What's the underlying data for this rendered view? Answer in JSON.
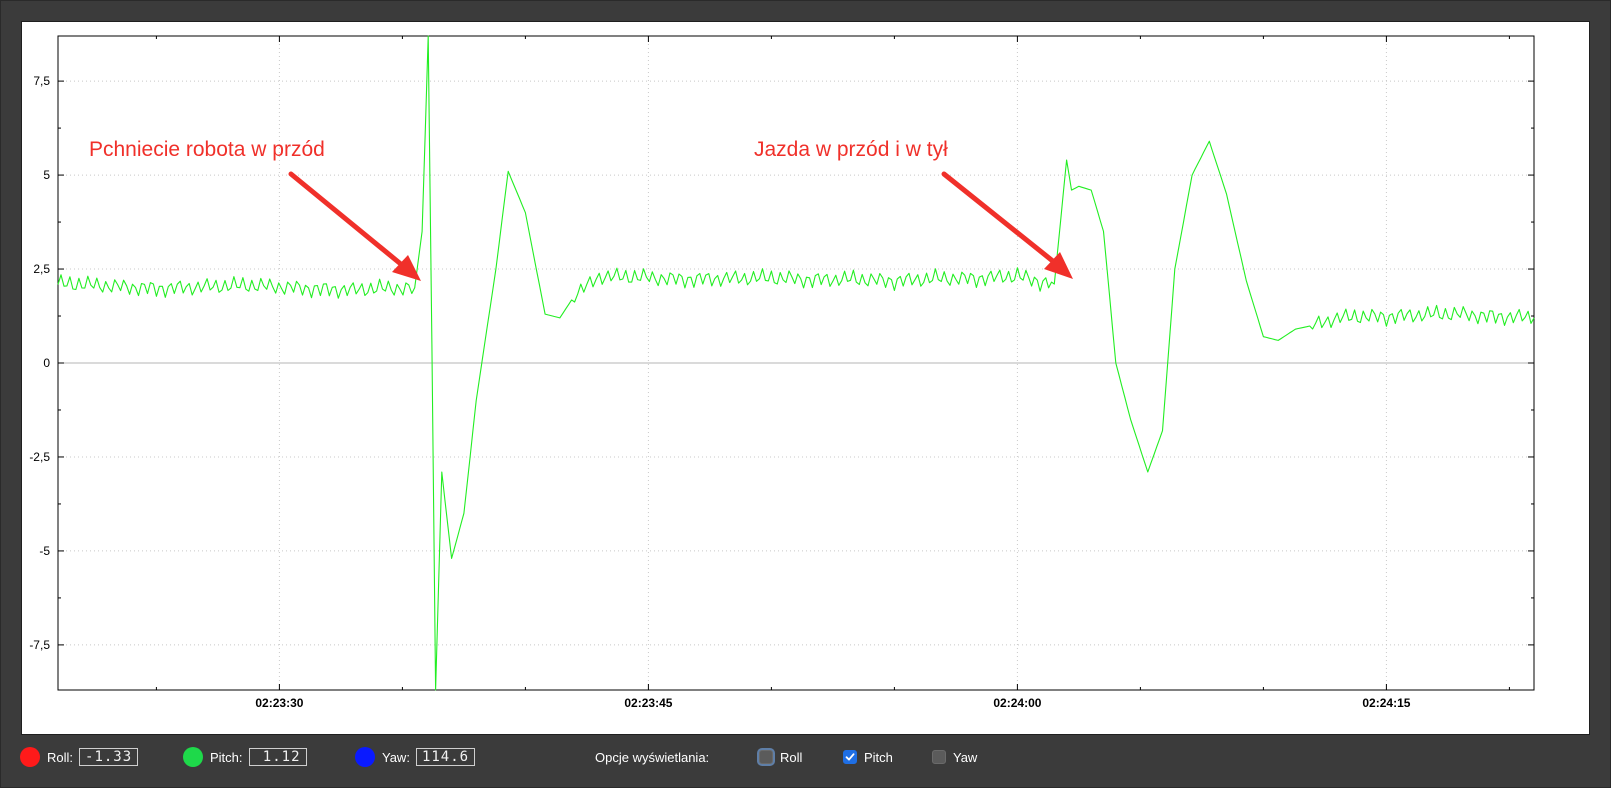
{
  "chart_data": {
    "type": "line",
    "title": "",
    "xlabel": "",
    "ylabel": "",
    "xlim": [
      "02:23:21",
      "02:24:21"
    ],
    "ylim": [
      -8.7,
      8.7
    ],
    "yticks": [
      7.5,
      5,
      2.5,
      0,
      -2.5,
      -5,
      -7.5
    ],
    "ytick_labels": [
      "7,5",
      "5",
      "2,5",
      "0",
      "-2,5",
      "-5",
      "-7,5"
    ],
    "xticks": [
      "02:23:30",
      "02:23:45",
      "02:24:00",
      "02:24:15"
    ],
    "grid": true,
    "series": [
      {
        "name": "Pitch",
        "color": "#22ee22",
        "x": [
          "02:23:21",
          "02:23:25",
          "02:23:29",
          "02:23:33",
          "02:23:35.5",
          "02:23:35.8",
          "02:23:36.05",
          "02:23:36.2",
          "02:23:36.35",
          "02:23:36.6",
          "02:23:37",
          "02:23:37.5",
          "02:23:38",
          "02:23:38.8",
          "02:23:39.3",
          "02:23:40",
          "02:23:40.8",
          "02:23:41.4",
          "02:23:42",
          "02:23:43",
          "02:23:46",
          "02:23:50",
          "02:23:55",
          "02:24:00",
          "02:24:01.5",
          "02:24:02",
          "02:24:02.2",
          "02:24:02.5",
          "02:24:03",
          "02:24:03.5",
          "02:24:04",
          "02:24:04.6",
          "02:24:05.3",
          "02:24:05.9",
          "02:24:06.4",
          "02:24:07.1",
          "02:24:07.8",
          "02:24:08.5",
          "02:24:09.3",
          "02:24:10",
          "02:24:10.6",
          "02:24:11.3",
          "02:24:12",
          "02:24:13",
          "02:24:15",
          "02:24:18",
          "02:24:21"
        ],
        "y": [
          2.1,
          2.0,
          2.05,
          1.95,
          2.0,
          3.5,
          8.7,
          0.5,
          -8.7,
          -2.9,
          -5.2,
          -4.0,
          -1.0,
          2.5,
          5.1,
          4.0,
          1.3,
          1.2,
          1.8,
          2.3,
          2.25,
          2.25,
          2.2,
          2.3,
          2.1,
          5.4,
          4.6,
          4.7,
          4.6,
          3.5,
          0.0,
          -1.5,
          -2.9,
          -1.8,
          2.5,
          5.0,
          5.9,
          4.5,
          2.2,
          0.7,
          0.6,
          0.9,
          1.0,
          1.2,
          1.25,
          1.3,
          1.2
        ]
      }
    ]
  },
  "annotations": [
    {
      "text": "Pchniecie robota w przód"
    },
    {
      "text": "Jazda w przód i w tył"
    }
  ],
  "annotation_color": "#f0302a",
  "status": {
    "roll": {
      "label": "Roll:",
      "value": "-1.33",
      "color": "#ff1a1a"
    },
    "pitch": {
      "label": "Pitch:",
      "value": "1.12",
      "color": "#1ed94a"
    },
    "yaw": {
      "label": "Yaw:",
      "value": "114.6",
      "color": "#0a1aff"
    }
  },
  "display_options": {
    "label": "Opcje wyświetlania:",
    "roll": {
      "label": "Roll",
      "checked": false
    },
    "pitch": {
      "label": "Pitch",
      "checked": true
    },
    "yaw": {
      "label": "Yaw",
      "checked": false
    }
  }
}
